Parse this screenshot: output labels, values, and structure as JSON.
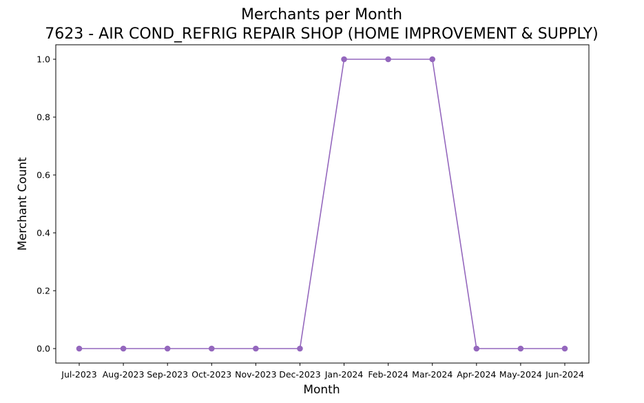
{
  "chart_data": {
    "type": "line",
    "title": "Merchants per Month",
    "subtitle": "7623 - AIR COND_REFRIG REPAIR SHOP (HOME IMPROVEMENT & SUPPLY)",
    "xlabel": "Month",
    "ylabel": "Merchant Count",
    "categories": [
      "Jul-2023",
      "Aug-2023",
      "Sep-2023",
      "Oct-2023",
      "Nov-2023",
      "Dec-2023",
      "Jan-2024",
      "Feb-2024",
      "Mar-2024",
      "Apr-2024",
      "May-2024",
      "Jun-2024"
    ],
    "series": [
      {
        "values": [
          0,
          0,
          0,
          0,
          0,
          0,
          1,
          1,
          1,
          0,
          0,
          0
        ],
        "color": "#9467bd",
        "marker": "circle"
      }
    ],
    "ylim": [
      -0.05,
      1.05
    ],
    "yticks": [
      0.0,
      0.2,
      0.4,
      0.6,
      0.8,
      1.0
    ],
    "ytick_labels": [
      "0.0",
      "0.2",
      "0.4",
      "0.6",
      "0.8",
      "1.0"
    ],
    "grid": false,
    "legend": "none"
  }
}
